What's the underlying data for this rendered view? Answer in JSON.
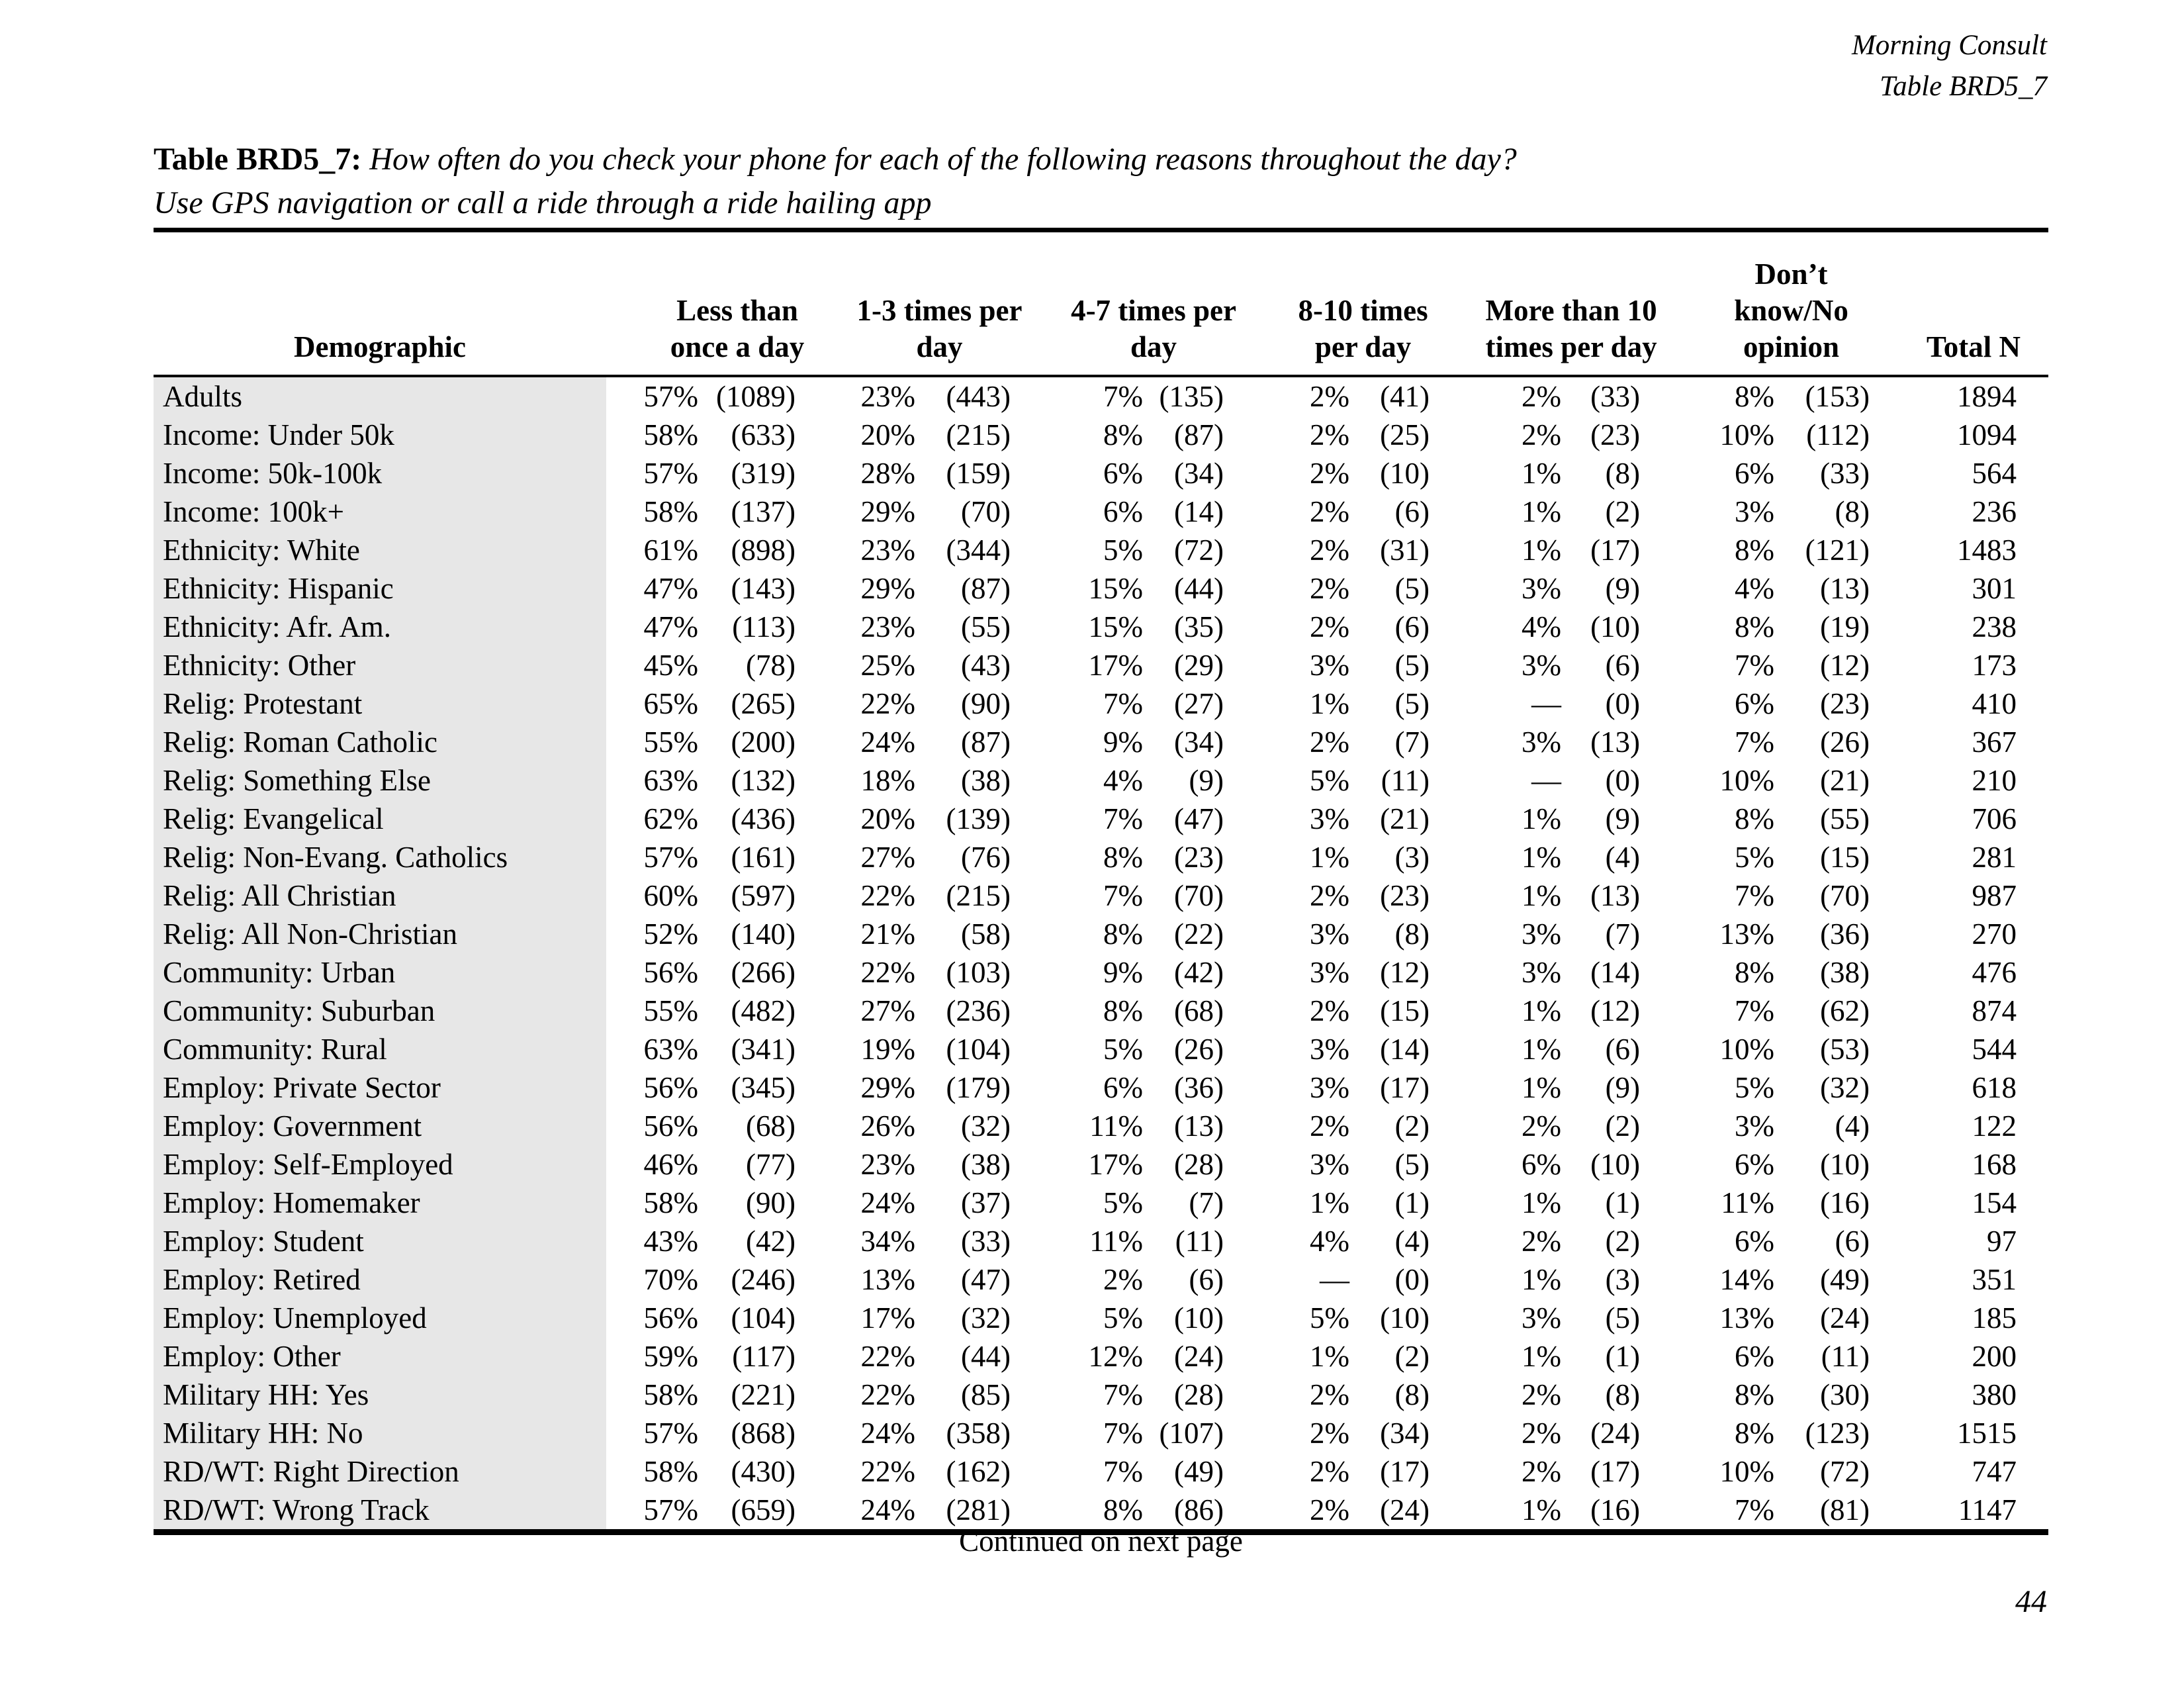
{
  "page_header": {
    "line1": "Morning Consult",
    "line2": "Table BRD5_7"
  },
  "title": {
    "label": "Table BRD5_7:",
    "question": "How often do you check your phone for each of the following reasons throughout the day?",
    "subtitle": "Use GPS navigation or call a ride through a ride hailing app"
  },
  "table": {
    "demographic_header": "Demographic",
    "group_headers": [
      "Less than\nonce a day",
      "1-3 times per\nday",
      "4-7 times per\nday",
      "8-10 times\nper day",
      "More than 10\ntimes per day",
      "Don’t\nknow/No\nopinion"
    ],
    "total_header": "Total N",
    "rows": [
      {
        "label": "Adults",
        "cells": [
          "57%",
          "(1089)",
          "23%",
          "(443)",
          "7%",
          "(135)",
          "2%",
          "(41)",
          "2%",
          "(33)",
          "8%",
          "(153)"
        ],
        "total": "1894"
      },
      {
        "label": "Income: Under 50k",
        "cells": [
          "58%",
          "(633)",
          "20%",
          "(215)",
          "8%",
          "(87)",
          "2%",
          "(25)",
          "2%",
          "(23)",
          "10%",
          "(112)"
        ],
        "total": "1094"
      },
      {
        "label": "Income: 50k-100k",
        "cells": [
          "57%",
          "(319)",
          "28%",
          "(159)",
          "6%",
          "(34)",
          "2%",
          "(10)",
          "1%",
          "(8)",
          "6%",
          "(33)"
        ],
        "total": "564"
      },
      {
        "label": "Income: 100k+",
        "cells": [
          "58%",
          "(137)",
          "29%",
          "(70)",
          "6%",
          "(14)",
          "2%",
          "(6)",
          "1%",
          "(2)",
          "3%",
          "(8)"
        ],
        "total": "236"
      },
      {
        "label": "Ethnicity: White",
        "cells": [
          "61%",
          "(898)",
          "23%",
          "(344)",
          "5%",
          "(72)",
          "2%",
          "(31)",
          "1%",
          "(17)",
          "8%",
          "(121)"
        ],
        "total": "1483"
      },
      {
        "label": "Ethnicity: Hispanic",
        "cells": [
          "47%",
          "(143)",
          "29%",
          "(87)",
          "15%",
          "(44)",
          "2%",
          "(5)",
          "3%",
          "(9)",
          "4%",
          "(13)"
        ],
        "total": "301"
      },
      {
        "label": "Ethnicity: Afr. Am.",
        "cells": [
          "47%",
          "(113)",
          "23%",
          "(55)",
          "15%",
          "(35)",
          "2%",
          "(6)",
          "4%",
          "(10)",
          "8%",
          "(19)"
        ],
        "total": "238"
      },
      {
        "label": "Ethnicity: Other",
        "cells": [
          "45%",
          "(78)",
          "25%",
          "(43)",
          "17%",
          "(29)",
          "3%",
          "(5)",
          "3%",
          "(6)",
          "7%",
          "(12)"
        ],
        "total": "173"
      },
      {
        "label": "Relig: Protestant",
        "cells": [
          "65%",
          "(265)",
          "22%",
          "(90)",
          "7%",
          "(27)",
          "1%",
          "(5)",
          "—",
          "(0)",
          "6%",
          "(23)"
        ],
        "total": "410"
      },
      {
        "label": "Relig: Roman Catholic",
        "cells": [
          "55%",
          "(200)",
          "24%",
          "(87)",
          "9%",
          "(34)",
          "2%",
          "(7)",
          "3%",
          "(13)",
          "7%",
          "(26)"
        ],
        "total": "367"
      },
      {
        "label": "Relig: Something Else",
        "cells": [
          "63%",
          "(132)",
          "18%",
          "(38)",
          "4%",
          "(9)",
          "5%",
          "(11)",
          "—",
          "(0)",
          "10%",
          "(21)"
        ],
        "total": "210"
      },
      {
        "label": "Relig: Evangelical",
        "cells": [
          "62%",
          "(436)",
          "20%",
          "(139)",
          "7%",
          "(47)",
          "3%",
          "(21)",
          "1%",
          "(9)",
          "8%",
          "(55)"
        ],
        "total": "706"
      },
      {
        "label": "Relig: Non-Evang. Catholics",
        "cells": [
          "57%",
          "(161)",
          "27%",
          "(76)",
          "8%",
          "(23)",
          "1%",
          "(3)",
          "1%",
          "(4)",
          "5%",
          "(15)"
        ],
        "total": "281"
      },
      {
        "label": "Relig: All Christian",
        "cells": [
          "60%",
          "(597)",
          "22%",
          "(215)",
          "7%",
          "(70)",
          "2%",
          "(23)",
          "1%",
          "(13)",
          "7%",
          "(70)"
        ],
        "total": "987"
      },
      {
        "label": "Relig: All Non-Christian",
        "cells": [
          "52%",
          "(140)",
          "21%",
          "(58)",
          "8%",
          "(22)",
          "3%",
          "(8)",
          "3%",
          "(7)",
          "13%",
          "(36)"
        ],
        "total": "270"
      },
      {
        "label": "Community: Urban",
        "cells": [
          "56%",
          "(266)",
          "22%",
          "(103)",
          "9%",
          "(42)",
          "3%",
          "(12)",
          "3%",
          "(14)",
          "8%",
          "(38)"
        ],
        "total": "476"
      },
      {
        "label": "Community: Suburban",
        "cells": [
          "55%",
          "(482)",
          "27%",
          "(236)",
          "8%",
          "(68)",
          "2%",
          "(15)",
          "1%",
          "(12)",
          "7%",
          "(62)"
        ],
        "total": "874"
      },
      {
        "label": "Community: Rural",
        "cells": [
          "63%",
          "(341)",
          "19%",
          "(104)",
          "5%",
          "(26)",
          "3%",
          "(14)",
          "1%",
          "(6)",
          "10%",
          "(53)"
        ],
        "total": "544"
      },
      {
        "label": "Employ: Private Sector",
        "cells": [
          "56%",
          "(345)",
          "29%",
          "(179)",
          "6%",
          "(36)",
          "3%",
          "(17)",
          "1%",
          "(9)",
          "5%",
          "(32)"
        ],
        "total": "618"
      },
      {
        "label": "Employ: Government",
        "cells": [
          "56%",
          "(68)",
          "26%",
          "(32)",
          "11%",
          "(13)",
          "2%",
          "(2)",
          "2%",
          "(2)",
          "3%",
          "(4)"
        ],
        "total": "122"
      },
      {
        "label": "Employ: Self-Employed",
        "cells": [
          "46%",
          "(77)",
          "23%",
          "(38)",
          "17%",
          "(28)",
          "3%",
          "(5)",
          "6%",
          "(10)",
          "6%",
          "(10)"
        ],
        "total": "168"
      },
      {
        "label": "Employ: Homemaker",
        "cells": [
          "58%",
          "(90)",
          "24%",
          "(37)",
          "5%",
          "(7)",
          "1%",
          "(1)",
          "1%",
          "(1)",
          "11%",
          "(16)"
        ],
        "total": "154"
      },
      {
        "label": "Employ: Student",
        "cells": [
          "43%",
          "(42)",
          "34%",
          "(33)",
          "11%",
          "(11)",
          "4%",
          "(4)",
          "2%",
          "(2)",
          "6%",
          "(6)"
        ],
        "total": "97"
      },
      {
        "label": "Employ: Retired",
        "cells": [
          "70%",
          "(246)",
          "13%",
          "(47)",
          "2%",
          "(6)",
          "—",
          "(0)",
          "1%",
          "(3)",
          "14%",
          "(49)"
        ],
        "total": "351"
      },
      {
        "label": "Employ: Unemployed",
        "cells": [
          "56%",
          "(104)",
          "17%",
          "(32)",
          "5%",
          "(10)",
          "5%",
          "(10)",
          "3%",
          "(5)",
          "13%",
          "(24)"
        ],
        "total": "185"
      },
      {
        "label": "Employ: Other",
        "cells": [
          "59%",
          "(117)",
          "22%",
          "(44)",
          "12%",
          "(24)",
          "1%",
          "(2)",
          "1%",
          "(1)",
          "6%",
          "(11)"
        ],
        "total": "200"
      },
      {
        "label": "Military HH: Yes",
        "cells": [
          "58%",
          "(221)",
          "22%",
          "(85)",
          "7%",
          "(28)",
          "2%",
          "(8)",
          "2%",
          "(8)",
          "8%",
          "(30)"
        ],
        "total": "380"
      },
      {
        "label": "Military HH: No",
        "cells": [
          "57%",
          "(868)",
          "24%",
          "(358)",
          "7%",
          "(107)",
          "2%",
          "(34)",
          "2%",
          "(24)",
          "8%",
          "(123)"
        ],
        "total": "1515"
      },
      {
        "label": "RD/WT: Right Direction",
        "cells": [
          "58%",
          "(430)",
          "22%",
          "(162)",
          "7%",
          "(49)",
          "2%",
          "(17)",
          "2%",
          "(17)",
          "10%",
          "(72)"
        ],
        "total": "747"
      },
      {
        "label": "RD/WT: Wrong Track",
        "cells": [
          "57%",
          "(659)",
          "24%",
          "(281)",
          "8%",
          "(86)",
          "2%",
          "(24)",
          "1%",
          "(16)",
          "7%",
          "(81)"
        ],
        "total": "1147"
      }
    ]
  },
  "footer": {
    "continued": "Continued on next page",
    "page_number": "44"
  }
}
